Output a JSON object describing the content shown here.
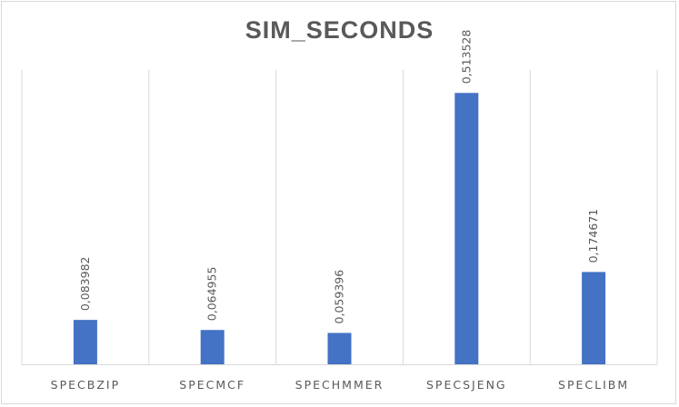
{
  "chart_data": {
    "type": "bar",
    "title": "SIM_SECONDS",
    "categories": [
      "SPECBZIP",
      "SPECMCF",
      "SPECHMMER",
      "SPECSJENG",
      "SPECLIBM"
    ],
    "values": [
      0.083982,
      0.064955,
      0.059396,
      0.513528,
      0.174671
    ],
    "data_labels": [
      "0,083982",
      "0,064955",
      "0,059396",
      "0,513528",
      "0,174671"
    ],
    "ylim": [
      0,
      0.6
    ],
    "grid": "vertical category separators",
    "legend": "none",
    "bar_color": "#4472c4"
  }
}
